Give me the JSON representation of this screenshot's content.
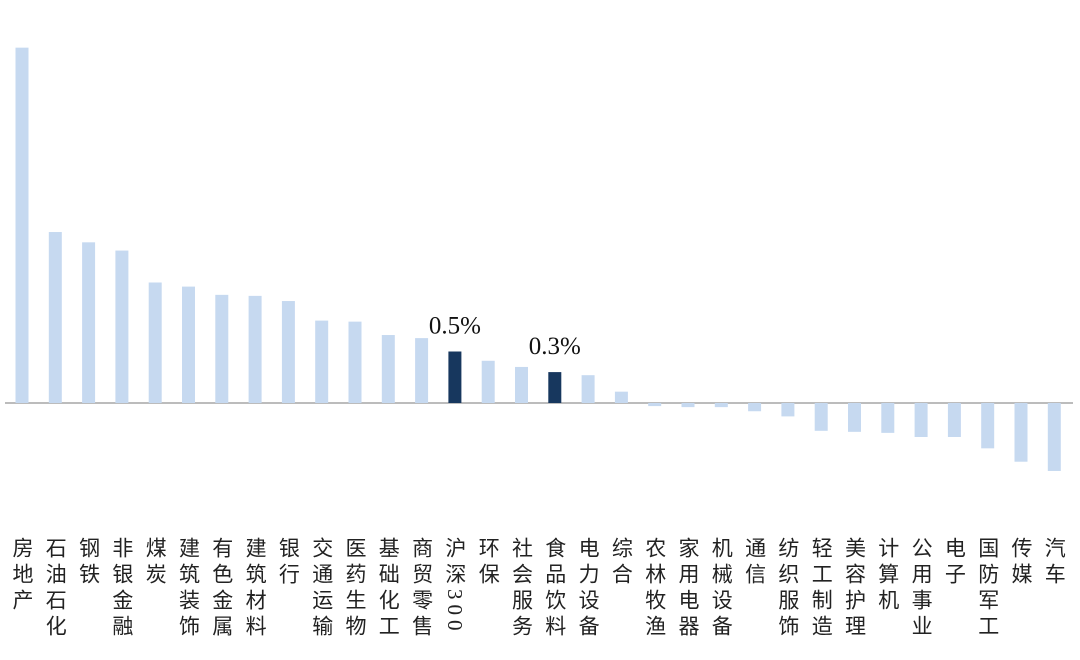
{
  "chart_data": {
    "type": "bar",
    "categories": [
      "房地产",
      "石油石化",
      "钢铁",
      "非银金融",
      "煤炭",
      "建筑装饰",
      "有色金属",
      "建筑材料",
      "银行",
      "交通运输",
      "医药生物",
      "基础化工",
      "商贸零售",
      "沪深300",
      "环保",
      "社会服务",
      "食品饮料",
      "电力设备",
      "综合",
      "农林牧渔",
      "家用电器",
      "机械设备",
      "通信",
      "纺织服饰",
      "轻工制造",
      "美容护理",
      "计算机",
      "公用事业",
      "电子",
      "国防军工",
      "传媒",
      "汽车"
    ],
    "values": [
      3.45,
      1.66,
      1.56,
      1.48,
      1.17,
      1.13,
      1.05,
      1.04,
      0.99,
      0.8,
      0.79,
      0.66,
      0.63,
      0.5,
      0.41,
      0.35,
      0.3,
      0.27,
      0.11,
      -0.03,
      -0.04,
      -0.04,
      -0.08,
      -0.13,
      -0.27,
      -0.28,
      -0.29,
      -0.33,
      -0.33,
      -0.44,
      -0.57,
      -0.66
    ],
    "value_labels": [
      null,
      null,
      null,
      null,
      null,
      null,
      null,
      null,
      null,
      null,
      null,
      null,
      null,
      "0.5%",
      null,
      null,
      "0.3%",
      null,
      null,
      null,
      null,
      null,
      null,
      null,
      null,
      null,
      null,
      null,
      null,
      null,
      null,
      null
    ],
    "colors": [
      "#c6d9f0",
      "#c6d9f0",
      "#c6d9f0",
      "#c6d9f0",
      "#c6d9f0",
      "#c6d9f0",
      "#c6d9f0",
      "#c6d9f0",
      "#c6d9f0",
      "#c6d9f0",
      "#c6d9f0",
      "#c6d9f0",
      "#c6d9f0",
      "#17375e",
      "#c6d9f0",
      "#c6d9f0",
      "#17375e",
      "#c6d9f0",
      "#c6d9f0",
      "#c6d9f0",
      "#c6d9f0",
      "#c6d9f0",
      "#c6d9f0",
      "#c6d9f0",
      "#c6d9f0",
      "#c6d9f0",
      "#c6d9f0",
      "#c6d9f0",
      "#c6d9f0",
      "#c6d9f0",
      "#c6d9f0",
      "#c6d9f0"
    ]
  }
}
